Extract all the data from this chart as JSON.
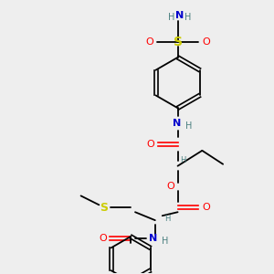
{
  "bg_color": "#eeeeee",
  "line_color": "#000000",
  "font_size": 8,
  "colors": {
    "N": "#0000cc",
    "O": "#ff0000",
    "S_sulfonamide": "#cccc00",
    "S_thioether": "#cccc00",
    "H": "#4a8080"
  }
}
